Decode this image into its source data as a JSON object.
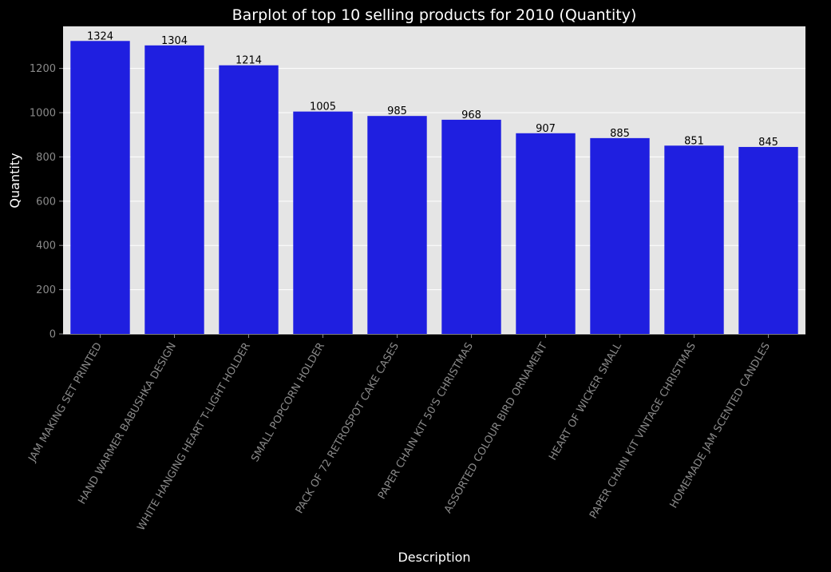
{
  "chart_data": {
    "type": "bar",
    "title": "Barplot of top 10 selling products for 2010 (Quantity)",
    "xlabel": "Description",
    "ylabel": "Quantity",
    "categories": [
      "JAM MAKING SET PRINTED",
      "HAND WARMER BABUSHKA DESIGN",
      "WHITE HANGING HEART T-LIGHT HOLDER",
      "SMALL POPCORN HOLDER",
      "PACK OF 72 RETROSPOT CAKE CASES",
      "PAPER CHAIN KIT 50'S CHRISTMAS",
      "ASSORTED COLOUR BIRD ORNAMENT",
      "HEART OF WICKER SMALL",
      "PAPER CHAIN KIT VINTAGE CHRISTMAS",
      "HOMEMADE JAM SCENTED CANDLES"
    ],
    "values": [
      1324,
      1304,
      1214,
      1005,
      985,
      968,
      907,
      885,
      851,
      845
    ],
    "yticks": [
      0,
      200,
      400,
      600,
      800,
      1000,
      1200
    ],
    "ylim": [
      0,
      1390
    ],
    "grid": true,
    "colors": {
      "bar": "#1f1fe0",
      "plot_background": "#e5e5e5",
      "figure_background": "#000000",
      "grid": "#ffffff",
      "tick_label": "#8a8a8a",
      "title": "#ffffff"
    }
  }
}
